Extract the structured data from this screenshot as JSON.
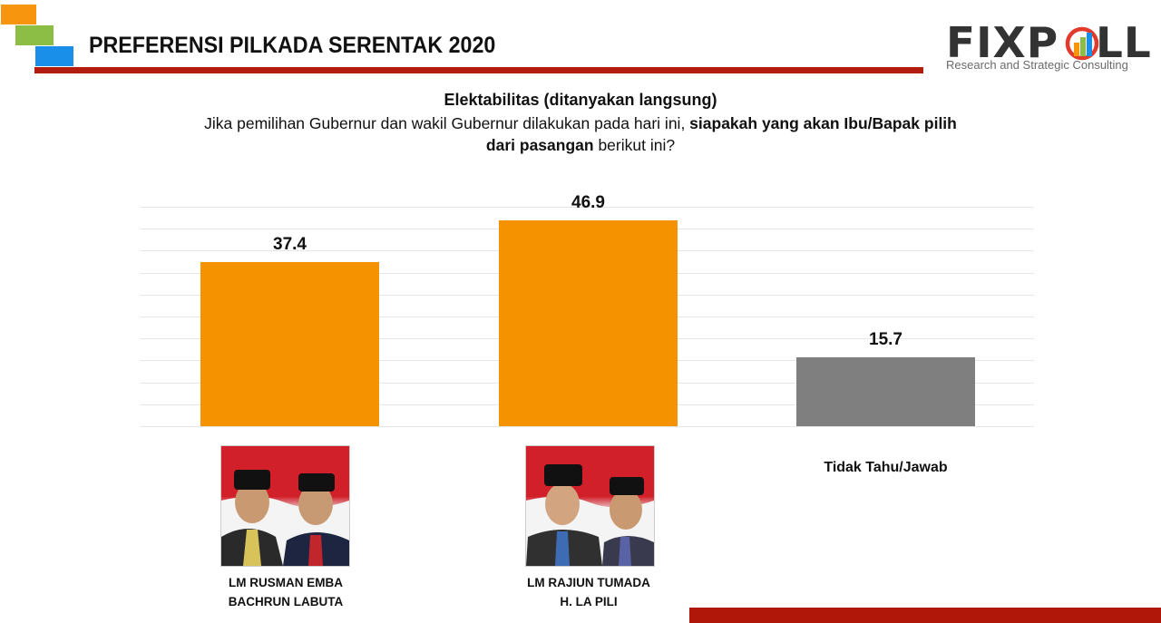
{
  "header": {
    "title": "PREFERENSI PILKADA SERENTAK 2020",
    "accent_colors": {
      "orange": "#f7950f",
      "green": "#8cbd45",
      "blue": "#1a8fea",
      "rule": "#b11c0c"
    }
  },
  "logo": {
    "name": "FIXPOLL",
    "tagline": "Research and Strategic Consulting"
  },
  "subtitle": "Elektabilitas (ditanyakan langsung)",
  "question": {
    "part1": "Jika pemilihan Gubernur dan wakil Gubernur dilakukan pada hari ini, ",
    "part2_bold": "siapakah yang akan Ibu/Bapak pilih",
    "part3_bold": "dari pasangan",
    "part4": " berikut ini?"
  },
  "candidates": [
    {
      "line1": "LM RUSMAN EMBA",
      "line2": "BACHRUN LABUTA"
    },
    {
      "line1": "LM RAJIUN TUMADA",
      "line2": "H. LA PILI"
    }
  ],
  "other_label": "Tidak Tahu/Jawab",
  "chart_data": {
    "type": "bar",
    "title": "Elektabilitas (ditanyakan langsung)",
    "categories": [
      "LM RUSMAN EMBA / BACHRUN LABUTA",
      "LM RAJIUN TUMADA / H. LA PILI",
      "Tidak Tahu/Jawab"
    ],
    "values": [
      37.4,
      46.9,
      15.7
    ],
    "value_labels": [
      "37.4",
      "46.9",
      "15.7"
    ],
    "colors": [
      "#f49200",
      "#f49200",
      "#7f7f7f"
    ],
    "xlabel": "",
    "ylabel": "",
    "ylim": [
      0,
      50
    ],
    "grid": true,
    "grid_step": 5,
    "legend": "none",
    "axis_ticks_visible": false
  }
}
